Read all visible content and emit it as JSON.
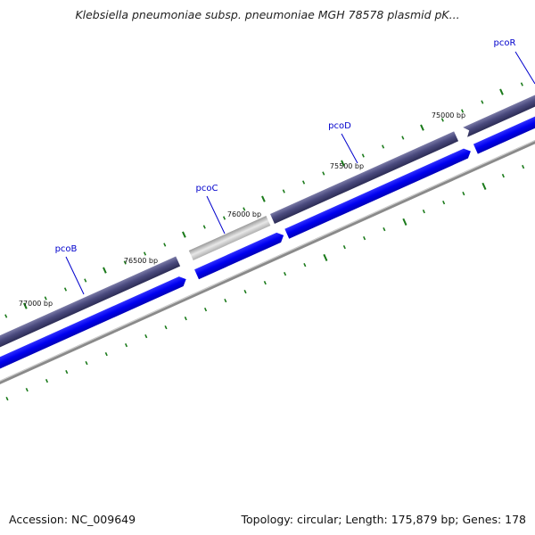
{
  "title": "Klebsiella pneumoniae subsp. pneumoniae MGH 78578 plasmid pK...",
  "footer": {
    "accession": "Accession: NC_009649",
    "summary": "Topology: circular; Length: 175,879 bp; Genes: 178"
  },
  "position_labels": [
    "77000 bp",
    "76500 bp",
    "76000 bp",
    "75500 bp",
    "75000 bp"
  ],
  "genes": [
    {
      "name": "pcoB"
    },
    {
      "name": "pcoC"
    },
    {
      "name": "pcoD"
    },
    {
      "name": "pcoR"
    }
  ],
  "colors": {
    "gene_label": "#0000cc",
    "cds_track": "#41416f",
    "selected_gene": "#c0c0c0",
    "gene_track": "#0000ee",
    "backbone": "#808080",
    "ticks": "#1a7a1a"
  }
}
